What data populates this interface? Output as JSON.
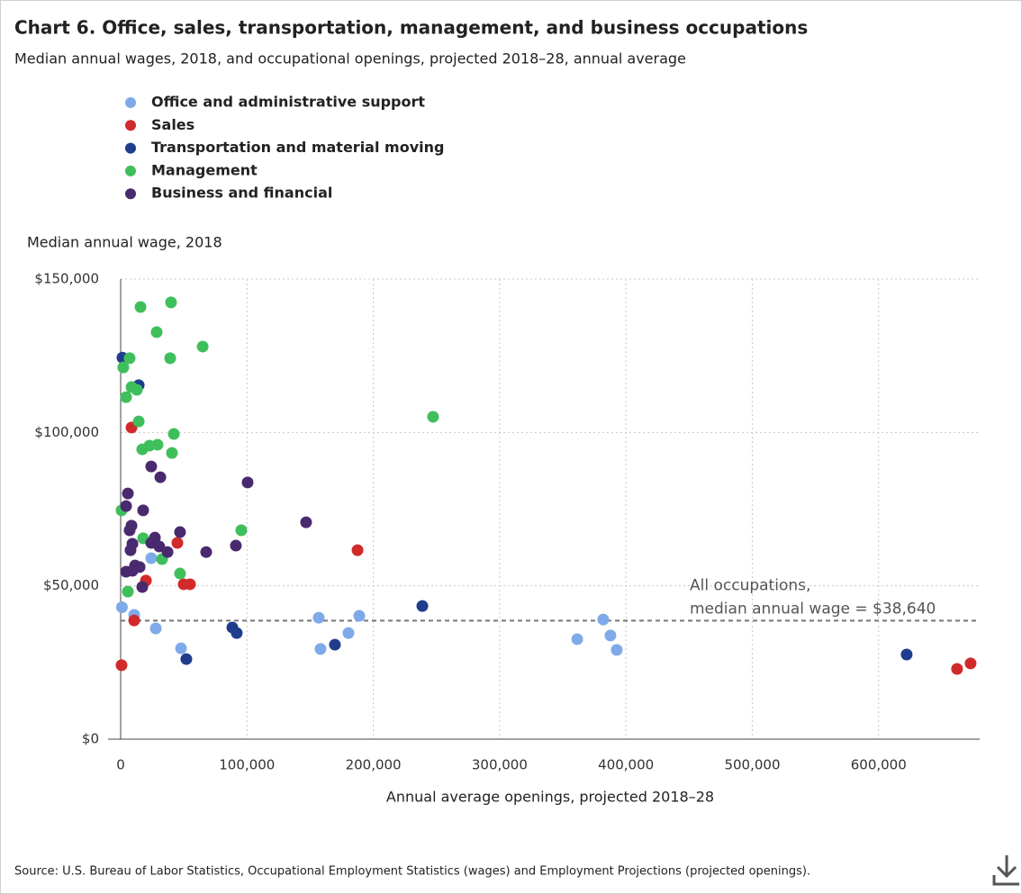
{
  "chart_data": {
    "type": "scatter",
    "title": "Chart 6. Office, sales, transportation, management, and business occupations",
    "subtitle": "Median annual wages, 2018, and occupational openings, projected 2018–28, annual average",
    "y_label": "Median annual wage, 2018",
    "x_label": "Annual average openings, projected 2018–28",
    "source": "Source: U.S. Bureau of Labor Statistics, Occupational Employment Statistics (wages) and Employment Projections (projected openings).",
    "xlim": [
      0,
      680000
    ],
    "xticks": [
      0,
      {
        "value": 100000,
        "label": "100,000"
      },
      {
        "value": 200000,
        "label": "200,000"
      },
      {
        "value": 300000,
        "label": "300,000"
      },
      {
        "value": 400000,
        "label": "400,000"
      },
      {
        "value": 500000,
        "label": "500,000"
      },
      {
        "value": 600000,
        "label": "600,000"
      }
    ],
    "ylim": [
      0,
      150000
    ],
    "yticks": [
      {
        "value": 0,
        "label": "$0"
      },
      {
        "value": 50000,
        "label": "$50,000"
      },
      {
        "value": 100000,
        "label": "$100,000"
      },
      {
        "value": 150000,
        "label": "$150,000"
      }
    ],
    "grid": true,
    "ref_line": {
      "value": 38640,
      "label": [
        "All occupations,",
        "median annual wage = $38,640"
      ]
    },
    "series": [
      {
        "name": "Office and administrative support",
        "color": "#7eaaea",
        "x": [
          1000,
          10700,
          27800,
          24200,
          47800,
          156800,
          158200,
          180300,
          188900,
          361400,
          382000,
          387700,
          392700
        ],
        "values": [
          43000,
          40500,
          36100,
          59000,
          29600,
          39600,
          29400,
          34600,
          40200,
          32600,
          39000,
          33800,
          29100
        ]
      },
      {
        "name": "Sales",
        "color": "#d12a2a",
        "x": [
          700,
          10700,
          8600,
          20000,
          44900,
          49900,
          54900,
          187500,
          662100,
          672800
        ],
        "values": [
          24100,
          38700,
          101600,
          51700,
          64000,
          50500,
          50500,
          61600,
          22900,
          24700
        ]
      },
      {
        "name": "Transportation and material moving",
        "color": "#1f3d8c",
        "x": [
          1400,
          14300,
          52000,
          88400,
          91900,
          169600,
          238800,
          622200
        ],
        "values": [
          124400,
          115400,
          26100,
          36400,
          34600,
          30800,
          43400,
          27600
        ]
      },
      {
        "name": "Management",
        "color": "#3fbf5c",
        "x": [
          700,
          2100,
          4300,
          7100,
          8600,
          12800,
          14300,
          15700,
          28500,
          39900,
          39200,
          64900,
          42100,
          40600,
          17100,
          22800,
          29200,
          5700,
          17800,
          32800,
          47000,
          95500,
          247300
        ],
        "values": [
          74600,
          121200,
          111500,
          124200,
          114800,
          113900,
          103600,
          140900,
          132700,
          142400,
          124200,
          128000,
          99500,
          93300,
          94500,
          95700,
          96000,
          48100,
          65500,
          58700,
          54000,
          68100,
          105100
        ]
      },
      {
        "name": "Business and financial",
        "color": "#4a2a6e",
        "x": [
          5700,
          4300,
          17800,
          24200,
          31400,
          100500,
          8600,
          7100,
          9300,
          7800,
          27100,
          24200,
          30600,
          37100,
          47000,
          67700,
          91200,
          146800,
          4300,
          9300,
          11400,
          15000,
          17100
        ],
        "values": [
          80100,
          76000,
          74600,
          88900,
          85400,
          83700,
          69600,
          68100,
          63700,
          61600,
          65700,
          64000,
          62800,
          61000,
          67500,
          61000,
          63100,
          70700,
          54600,
          54900,
          56600,
          56100,
          49600
        ]
      }
    ]
  }
}
